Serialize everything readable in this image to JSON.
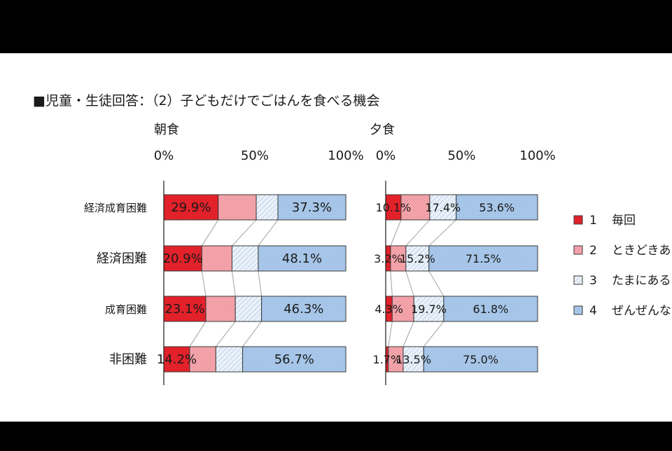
{
  "title": "■児童・生徒回答：（2）子どもだけでごはんを食べる機会",
  "colors": {
    "s1": "#e8232c",
    "s2": "#f4a7ae",
    "s3": "#dce9f6",
    "s4": "#a9c8ea",
    "connector": "#b0b0b0",
    "text": "#1a1a1a"
  },
  "chart_data": [
    {
      "type": "bar",
      "orientation": "horizontal",
      "stacked": true,
      "percent": true,
      "title": "朝食",
      "xlim": [
        0,
        100
      ],
      "x_ticks": [
        "0%",
        "50%",
        "100%"
      ],
      "categories": [
        "経済成育困難",
        "経済困難",
        "成育困難",
        "非困難"
      ],
      "series": [
        {
          "name": "1　毎回",
          "values": [
            29.9,
            20.9,
            23.1,
            14.2
          ],
          "labels": [
            "29.9%",
            "20.9%",
            "23.1%",
            "14.2%"
          ]
        },
        {
          "name": "2　ときどきあ",
          "values": [
            20.9,
            16.6,
            16.2,
            14.4
          ],
          "labels": [
            "",
            "",
            "",
            ""
          ]
        },
        {
          "name": "3　たまにある",
          "values": [
            11.9,
            14.4,
            14.4,
            14.7
          ],
          "labels": [
            "",
            "",
            "",
            ""
          ]
        },
        {
          "name": "4　ぜんぜんな",
          "values": [
            37.3,
            48.1,
            46.3,
            56.7
          ],
          "labels": [
            "37.3%",
            "48.1%",
            "46.3%",
            "56.7%"
          ]
        }
      ]
    },
    {
      "type": "bar",
      "orientation": "horizontal",
      "stacked": true,
      "percent": true,
      "title": "夕食",
      "xlim": [
        0,
        100
      ],
      "x_ticks": [
        "0%",
        "50%",
        "100%"
      ],
      "categories": [
        "経済成育困難",
        "経済困難",
        "成育困難",
        "非困難"
      ],
      "series": [
        {
          "name": "1　毎回",
          "values": [
            10.1,
            3.2,
            4.3,
            1.7
          ],
          "labels": [
            "10.1%",
            "3.2%",
            "4.3%",
            "1.7%"
          ]
        },
        {
          "name": "2　ときどきあ",
          "values": [
            18.9,
            10.1,
            14.2,
            9.8
          ],
          "labels": [
            "",
            "",
            "",
            ""
          ]
        },
        {
          "name": "3　たまにある",
          "values": [
            17.4,
            15.2,
            19.7,
            13.5
          ],
          "labels": [
            "17.4%",
            "15.2%",
            "19.7%",
            "13.5%"
          ]
        },
        {
          "name": "4　ぜんぜんな",
          "values": [
            53.6,
            71.5,
            61.8,
            75.0
          ],
          "labels": [
            "53.6%",
            "71.5%",
            "61.8%",
            "75.0%"
          ]
        }
      ]
    }
  ],
  "legend": [
    {
      "num": "1",
      "label": "毎回"
    },
    {
      "num": "2",
      "label": "ときどきあ"
    },
    {
      "num": "3",
      "label": "たまにある"
    },
    {
      "num": "4",
      "label": "ぜんぜんな"
    }
  ]
}
